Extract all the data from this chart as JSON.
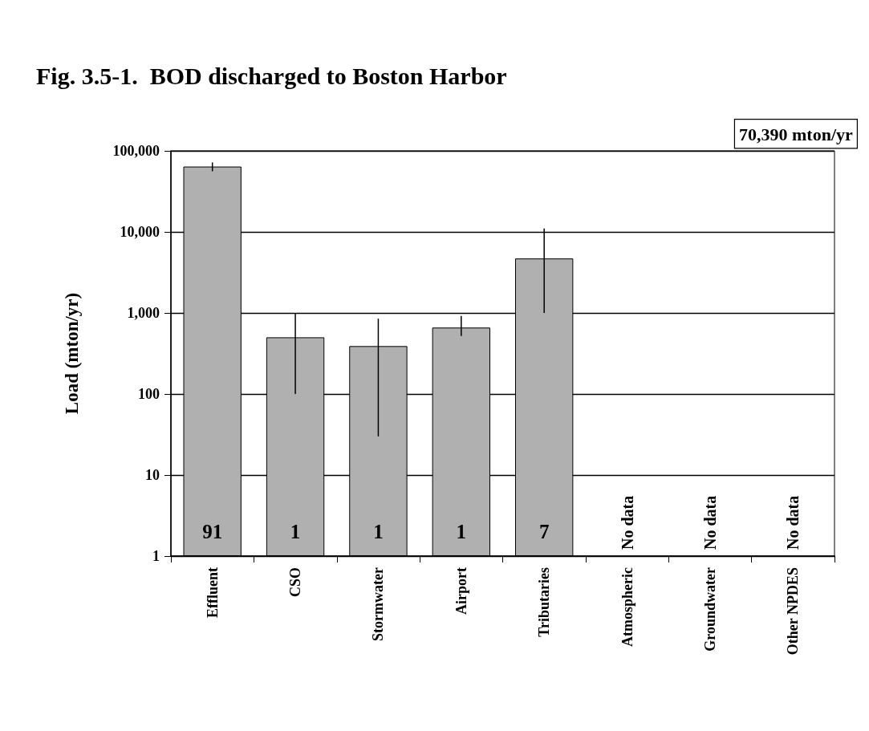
{
  "chart_data": {
    "type": "bar",
    "title": "Fig. 3.5-1.  BOD discharged to Boston Harbor",
    "ylabel": "Load (mton/yr)",
    "categories": [
      "Effluent",
      "CSO",
      "Stormwater",
      "Airport",
      "Tributaries",
      "Atmospheric",
      "Groundwater",
      "Other NPDES"
    ],
    "values": [
      64000,
      500,
      390,
      660,
      4700,
      null,
      null,
      null
    ],
    "errors": [
      [
        56000,
        72000
      ],
      [
        100,
        1000
      ],
      [
        30,
        850
      ],
      [
        520,
        920
      ],
      [
        1000,
        11000
      ],
      null,
      null,
      null
    ],
    "color": "#b0b0b0",
    "value_labels": [
      null,
      null,
      null,
      null,
      null,
      "No data",
      "No data",
      "No data"
    ],
    "annotations": [
      "70,390 mton/yr",
      {
        "text": "91",
        "x": "Effluent",
        "y": 1
      },
      {
        "text": "1",
        "x": "CSO",
        "y": 1
      },
      {
        "text": "1",
        "x": "Stormwater",
        "y": 1
      },
      {
        "text": "1",
        "x": "Airport",
        "y": 1
      },
      {
        "text": "7",
        "x": "Tributaries",
        "y": 1
      }
    ],
    "log": "y",
    "ylim": [
      1,
      100000
    ],
    "yticks": [
      1,
      10,
      100,
      {
        "value": 1000,
        "label": "1,000"
      },
      {
        "value": 10000,
        "label": "10,000"
      },
      {
        "value": 100000,
        "label": "100,000"
      }
    ],
    "grid": "y"
  }
}
